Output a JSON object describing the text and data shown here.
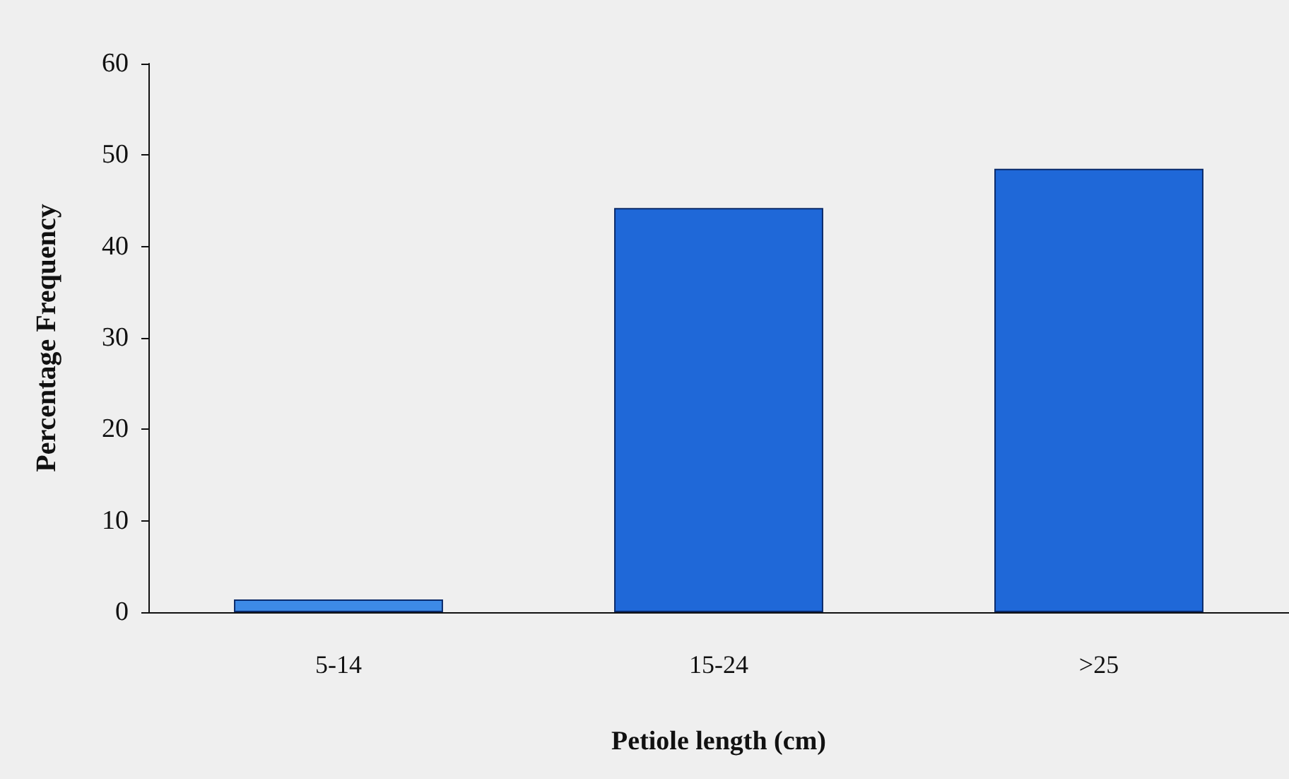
{
  "chart_data": {
    "type": "bar",
    "xlabel": "Petiole length (cm)",
    "ylabel": "Percentage Frequency",
    "categories": [
      "5-14",
      "15-24",
      ">25"
    ],
    "values": [
      1.4,
      44.2,
      48.5
    ],
    "colors": [
      "#3d8ae6",
      "#1f68d8",
      "#1f68d8"
    ],
    "ylim": [
      0,
      60
    ],
    "yticks": [
      0,
      10,
      20,
      30,
      40,
      50,
      60
    ],
    "grid": false
  }
}
